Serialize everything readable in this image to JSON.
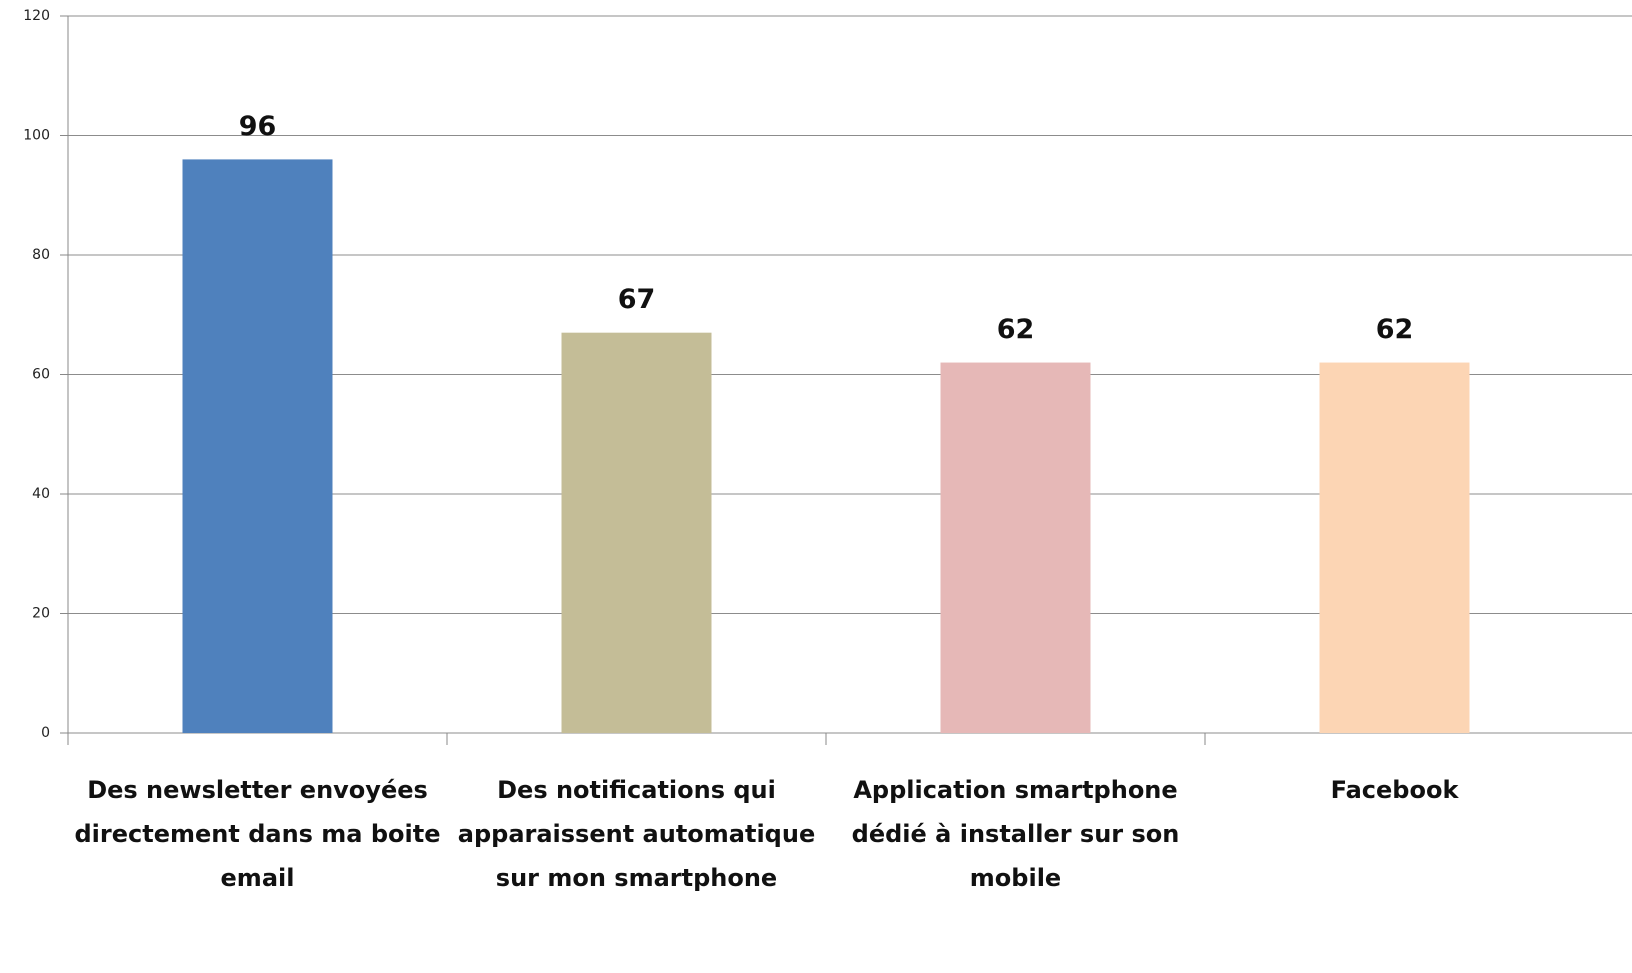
{
  "chart_data": {
    "type": "bar",
    "categories": [
      "Des newsletter envoyées directement dans ma boite email",
      "Des notifications qui apparaissent automatique sur mon smartphone",
      "Application smartphone dédié à installer sur son mobile",
      "Facebook"
    ],
    "values": [
      96,
      67,
      62,
      62
    ],
    "colors": [
      "#4f81bd",
      "#c4bd97",
      "#e6b8b7",
      "#fcd5b4"
    ],
    "ylim": [
      0,
      120
    ],
    "yticks": [
      0,
      20,
      40,
      60,
      80,
      100,
      120
    ],
    "grid": true
  }
}
